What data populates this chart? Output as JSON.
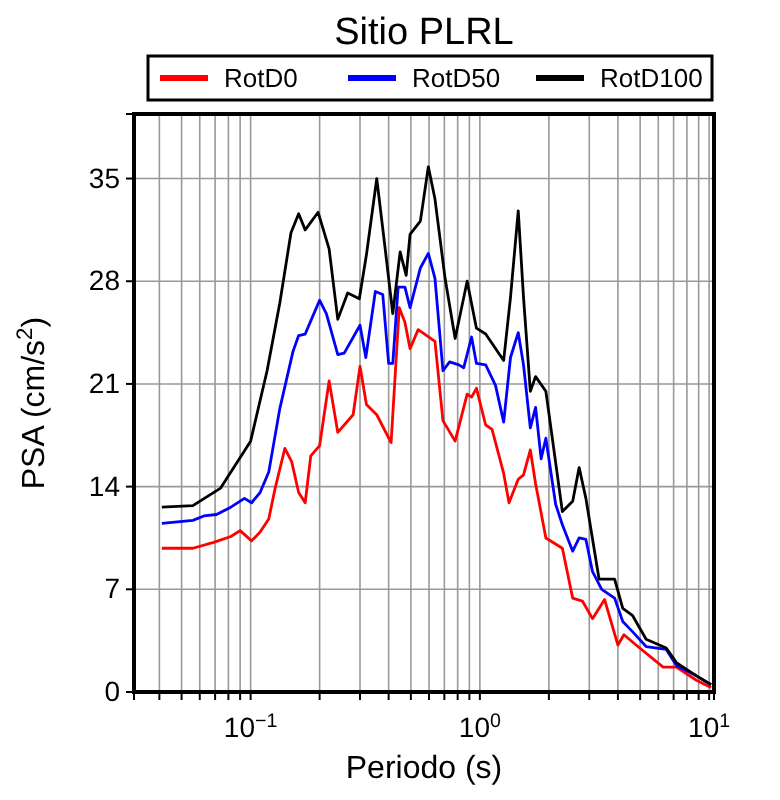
{
  "chart_data": {
    "type": "line",
    "title": "Sitio PLRL",
    "xlabel": "Periodo (s)",
    "ylabel": "PSA (cm/s$^{2}$)",
    "log": "x",
    "grid": true,
    "legend": "top",
    "line_style": "solid",
    "xlim": [
      0.031,
      10.5
    ],
    "ylim": [
      0,
      39.4
    ],
    "xticks": [
      {
        "value": 0.04,
        "label": null
      },
      {
        "value": 0.05,
        "label": null
      },
      {
        "value": 0.06,
        "label": null
      },
      {
        "value": 0.07,
        "label": null
      },
      {
        "value": 0.08,
        "label": null
      },
      {
        "value": 0.09,
        "label": null
      },
      {
        "value": 0.1,
        "label": "10$^{−1}$"
      },
      {
        "value": 0.2,
        "label": null
      },
      {
        "value": 0.3,
        "label": null
      },
      {
        "value": 0.4,
        "label": null
      },
      {
        "value": 0.5,
        "label": null
      },
      {
        "value": 0.6,
        "label": null
      },
      {
        "value": 0.7,
        "label": null
      },
      {
        "value": 0.8,
        "label": null
      },
      {
        "value": 0.9,
        "label": null
      },
      {
        "value": 1,
        "label": "10$^{0}$"
      },
      {
        "value": 2,
        "label": null
      },
      {
        "value": 3,
        "label": null
      },
      {
        "value": 4,
        "label": null
      },
      {
        "value": 5,
        "label": null
      },
      {
        "value": 6,
        "label": null
      },
      {
        "value": 7,
        "label": null
      },
      {
        "value": 8,
        "label": null
      },
      {
        "value": 9,
        "label": null
      },
      {
        "value": 10,
        "label": "10$^{1}$"
      }
    ],
    "yticks": [
      0,
      7,
      14,
      21,
      28,
      35
    ],
    "series": [
      {
        "name": "RotD0",
        "color": "#ff0000",
        "x": [
          0.041,
          0.056,
          0.069,
          0.082,
          0.09,
          0.101,
          0.11,
          0.12,
          0.128,
          0.141,
          0.151,
          0.162,
          0.173,
          0.183,
          0.2,
          0.22,
          0.24,
          0.28,
          0.3,
          0.32,
          0.355,
          0.41,
          0.445,
          0.471,
          0.496,
          0.538,
          0.637,
          0.69,
          0.78,
          0.88,
          0.92,
          0.966,
          1.06,
          1.13,
          1.27,
          1.34,
          1.47,
          1.55,
          1.66,
          1.75,
          1.94,
          2.29,
          2.54,
          2.8,
          3.1,
          3.5,
          4.0,
          4.25,
          4.8,
          6.3,
          7.2,
          8.8,
          10.2
        ],
        "values": [
          9.8,
          9.8,
          10.2,
          10.6,
          11.0,
          10.3,
          10.9,
          11.8,
          13.9,
          16.6,
          15.7,
          13.6,
          12.9,
          16.1,
          16.8,
          21.2,
          17.7,
          18.9,
          22.2,
          19.6,
          18.9,
          17.0,
          26.2,
          25.2,
          23.4,
          24.7,
          23.9,
          18.5,
          17.1,
          20.3,
          20.1,
          20.7,
          18.2,
          17.9,
          14.9,
          12.9,
          14.5,
          14.8,
          16.5,
          14.2,
          10.5,
          9.8,
          6.4,
          6.2,
          5.0,
          6.3,
          3.2,
          3.9,
          3.2,
          1.7,
          1.7,
          0.8,
          0.3
        ]
      },
      {
        "name": "RotD50",
        "color": "#0000ff",
        "x": [
          0.041,
          0.056,
          0.0625,
          0.071,
          0.082,
          0.094,
          0.101,
          0.11,
          0.12,
          0.134,
          0.153,
          0.162,
          0.173,
          0.183,
          0.2,
          0.214,
          0.24,
          0.256,
          0.3,
          0.318,
          0.35,
          0.377,
          0.4,
          0.417,
          0.44,
          0.471,
          0.496,
          0.55,
          0.596,
          0.637,
          0.69,
          0.738,
          0.81,
          0.85,
          0.92,
          0.966,
          1.06,
          1.17,
          1.27,
          1.36,
          1.47,
          1.55,
          1.66,
          1.75,
          1.85,
          1.94,
          2.14,
          2.29,
          2.54,
          2.71,
          2.9,
          3.1,
          3.4,
          3.87,
          4.2,
          4.64,
          5.31,
          6.5,
          7.2,
          8.8,
          10.2
        ],
        "values": [
          11.5,
          11.7,
          12.0,
          12.1,
          12.6,
          13.2,
          12.9,
          13.6,
          15.0,
          19.3,
          23.2,
          24.3,
          24.4,
          25.3,
          26.7,
          25.8,
          23.0,
          23.1,
          25.0,
          22.8,
          27.3,
          27.1,
          22.4,
          22.4,
          27.6,
          27.6,
          26.2,
          28.9,
          29.9,
          28.2,
          21.9,
          22.5,
          22.3,
          22.1,
          24.2,
          22.4,
          22.3,
          20.9,
          18.4,
          22.8,
          24.5,
          22.3,
          18.0,
          19.4,
          15.9,
          17.3,
          12.8,
          11.4,
          9.6,
          10.5,
          10.4,
          8.2,
          7.0,
          6.4,
          4.8,
          4.1,
          3.1,
          2.9,
          1.8,
          1.1,
          0.5
        ]
      },
      {
        "name": "RotD100",
        "color": "#000000",
        "x": [
          0.041,
          0.056,
          0.074,
          0.1,
          0.118,
          0.134,
          0.15,
          0.162,
          0.173,
          0.197,
          0.22,
          0.24,
          0.265,
          0.298,
          0.32,
          0.355,
          0.385,
          0.417,
          0.449,
          0.477,
          0.496,
          0.55,
          0.596,
          0.637,
          0.705,
          0.78,
          0.88,
          0.966,
          1.06,
          1.27,
          1.36,
          1.47,
          1.55,
          1.66,
          1.75,
          1.94,
          2.29,
          2.54,
          2.71,
          2.9,
          3.31,
          3.87,
          4.2,
          4.64,
          5.31,
          6.5,
          7.2,
          8.8,
          10.2
        ],
        "values": [
          12.6,
          12.7,
          13.9,
          17.1,
          21.9,
          26.5,
          31.3,
          32.6,
          31.5,
          32.7,
          30.2,
          25.4,
          27.2,
          26.8,
          29.8,
          35.0,
          30.4,
          25.8,
          30.0,
          28.4,
          31.2,
          32.1,
          35.8,
          33.6,
          28.2,
          24.1,
          28.0,
          24.8,
          24.4,
          22.6,
          26.9,
          32.8,
          26.9,
          20.5,
          21.5,
          20.5,
          12.3,
          13.0,
          15.3,
          13.2,
          7.7,
          7.7,
          5.7,
          5.2,
          3.6,
          3.0,
          2.0,
          1.1,
          0.5
        ]
      }
    ]
  }
}
